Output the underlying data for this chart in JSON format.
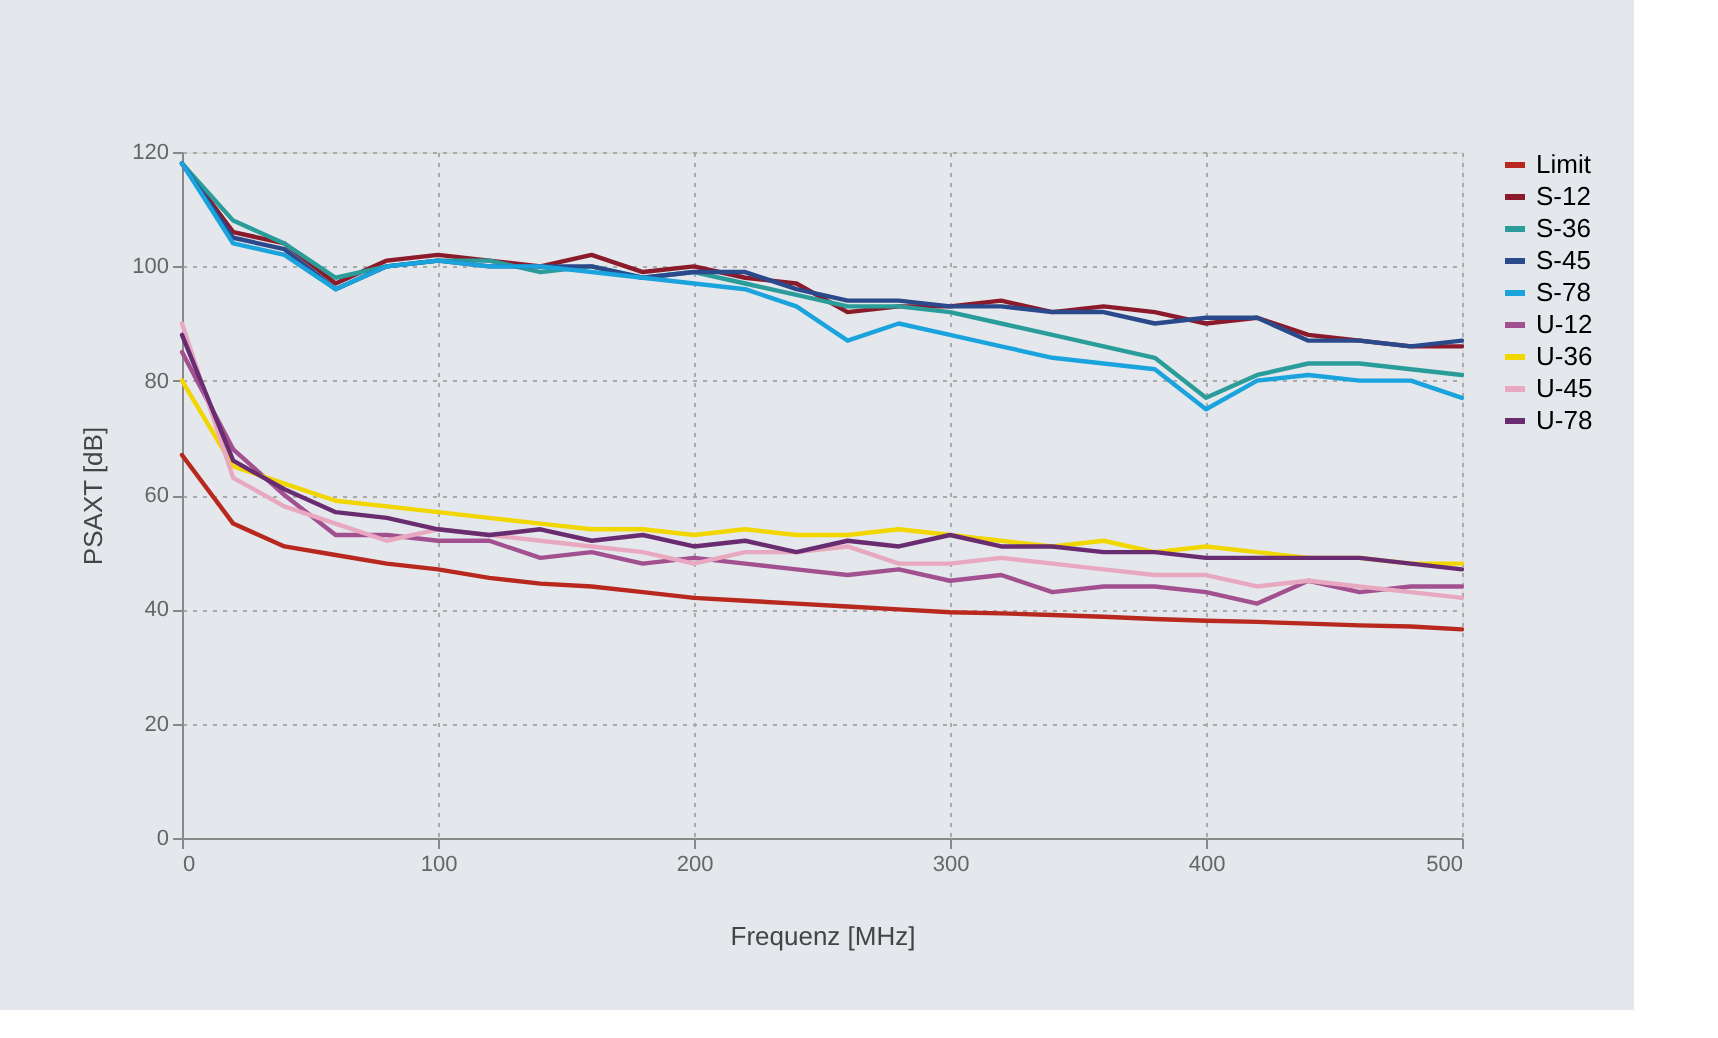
{
  "chart_data": {
    "type": "line",
    "xlabel": "Frequenz [MHz]",
    "ylabel": "PSAXT [dB]",
    "xlim": [
      0,
      500
    ],
    "xticks": [
      0,
      100,
      200,
      300,
      400,
      500
    ],
    "ylim": [
      0,
      120
    ],
    "yticks": [
      0,
      20,
      40,
      60,
      80,
      100,
      120
    ],
    "grid": true,
    "legend": "right",
    "line_style": "solid",
    "marker": "none",
    "x": [
      0,
      20,
      40,
      60,
      80,
      100,
      120,
      140,
      160,
      180,
      200,
      220,
      240,
      260,
      280,
      300,
      320,
      340,
      360,
      380,
      400,
      420,
      440,
      460,
      480,
      500
    ],
    "series": [
      {
        "name": "Limit",
        "color": "#b8281e",
        "values": [
          67,
          55,
          51,
          49.5,
          48,
          47,
          45.5,
          44.5,
          44,
          43,
          42,
          41.5,
          41,
          40.5,
          40,
          39.5,
          39.3,
          39,
          38.7,
          38.3,
          38,
          37.8,
          37.5,
          37.2,
          37,
          36.5
        ]
      },
      {
        "name": "S-12",
        "color": "#8b1a2b",
        "values": [
          118,
          106,
          104,
          97,
          101,
          102,
          101,
          100,
          102,
          99,
          100,
          98,
          97,
          92,
          93,
          93,
          94,
          92,
          93,
          92,
          90,
          91,
          88,
          87,
          86,
          86
        ]
      },
      {
        "name": "S-36",
        "color": "#2a9d9a",
        "values": [
          118,
          108,
          104,
          98,
          100,
          101,
          101,
          99,
          100,
          98,
          99,
          97,
          95,
          93,
          93,
          92,
          90,
          88,
          86,
          84,
          77,
          81,
          83,
          83,
          82,
          81
        ]
      },
      {
        "name": "S-45",
        "color": "#2b4a8c",
        "values": [
          118,
          105,
          103,
          96,
          100,
          101,
          100,
          100,
          100,
          98,
          99,
          99,
          96,
          94,
          94,
          93,
          93,
          92,
          92,
          90,
          91,
          91,
          87,
          87,
          86,
          87
        ]
      },
      {
        "name": "S-78",
        "color": "#1aa3dc",
        "values": [
          118,
          104,
          102,
          96,
          100,
          101,
          100,
          100,
          99,
          98,
          97,
          96,
          93,
          87,
          90,
          88,
          86,
          84,
          83,
          82,
          75,
          80,
          81,
          80,
          80,
          77
        ]
      },
      {
        "name": "U-12",
        "color": "#a2508f",
        "values": [
          85,
          68,
          60,
          53,
          53,
          52,
          52,
          49,
          50,
          48,
          49,
          48,
          47,
          46,
          47,
          45,
          46,
          43,
          44,
          44,
          43,
          41,
          45,
          43,
          44,
          44
        ]
      },
      {
        "name": "U-36",
        "color": "#f2d600",
        "values": [
          80,
          65,
          62,
          59,
          58,
          57,
          56,
          55,
          54,
          54,
          53,
          54,
          53,
          53,
          54,
          53,
          52,
          51,
          52,
          50,
          51,
          50,
          49,
          49,
          48,
          48
        ]
      },
      {
        "name": "U-45",
        "color": "#e8a8c0",
        "values": [
          90,
          63,
          58,
          55,
          52,
          54,
          53,
          52,
          51,
          50,
          48,
          50,
          50,
          51,
          48,
          48,
          49,
          48,
          47,
          46,
          46,
          44,
          45,
          44,
          43,
          42
        ]
      },
      {
        "name": "U-78",
        "color": "#6a2c70",
        "values": [
          88,
          66,
          61,
          57,
          56,
          54,
          53,
          54,
          52,
          53,
          51,
          52,
          50,
          52,
          51,
          53,
          51,
          51,
          50,
          50,
          49,
          49,
          49,
          49,
          48,
          47
        ]
      }
    ]
  }
}
